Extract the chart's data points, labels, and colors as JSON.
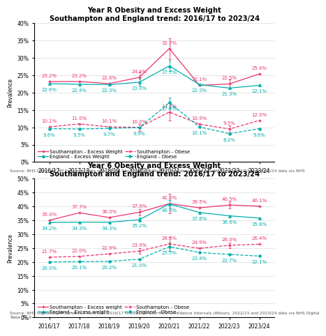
{
  "years": [
    "2016/17",
    "2017/18",
    "2018/19",
    "2019/20",
    "2020/21",
    "2021/22",
    "2022/23",
    "2023/24"
  ],
  "yearR": {
    "title1": "Year R Obesity and Excess Weight",
    "title2": "Southampton and England trend: 2016/17 to 2023/24",
    "soton_excess": [
      23.2,
      23.2,
      22.6,
      24.4,
      32.7,
      22.1,
      22.5,
      25.4
    ],
    "england_excess": [
      22.6,
      22.4,
      22.3,
      23.0,
      27.7,
      22.3,
      21.3,
      22.1
    ],
    "soton_obese": [
      10.1,
      11.0,
      10.1,
      10.0,
      14.4,
      10.9,
      9.5,
      12.0
    ],
    "england_obese": [
      9.6,
      9.5,
      9.7,
      9.9,
      17.1,
      10.1,
      8.2,
      9.6
    ],
    "soton_excess_err": [
      0,
      0,
      0,
      1.5,
      3.0,
      0,
      1.2,
      0
    ],
    "england_excess_err": [
      0,
      0,
      0,
      1.0,
      1.5,
      0,
      0,
      0
    ],
    "soton_obese_err": [
      0,
      0,
      0,
      1.0,
      2.5,
      0,
      1.0,
      0
    ],
    "england_obese_err": [
      0,
      0,
      0,
      0,
      1.5,
      0,
      0,
      0
    ],
    "ylim": [
      0,
      40
    ],
    "yticks": [
      0,
      5,
      10,
      15,
      20,
      25,
      30,
      35,
      40
    ],
    "source": "Source: NHS Digital NCMP Enhanced data sets 2016/17 to 2021/22 with 95% Confidence Intervals (Wilson), 2022/23 and 2023/24 data via NHS"
  },
  "yearY6": {
    "title1": "Year 6 Obesity and Excess Weight",
    "title2": "Southampton and England trend: 2016/17 to 2023/24",
    "soton_excess": [
      35.0,
      37.7,
      36.0,
      37.9,
      41.0,
      39.5,
      40.5,
      40.1
    ],
    "england_excess": [
      34.2,
      34.3,
      34.3,
      35.2,
      40.9,
      37.8,
      36.6,
      35.8
    ],
    "soton_obese": [
      21.7,
      22.0,
      22.9,
      23.9,
      26.5,
      24.9,
      26.0,
      26.4
    ],
    "england_obese": [
      20.0,
      20.1,
      20.2,
      21.0,
      25.5,
      23.4,
      22.7,
      22.1
    ],
    "soton_excess_err": [
      0,
      0,
      0,
      1.2,
      3.5,
      0,
      1.2,
      0
    ],
    "england_excess_err": [
      0,
      0,
      0,
      0.8,
      1.5,
      0,
      0,
      0
    ],
    "soton_obese_err": [
      0,
      0,
      0,
      1.0,
      2.5,
      0,
      1.0,
      0
    ],
    "england_obese_err": [
      0,
      0,
      0,
      0,
      1.5,
      0,
      0,
      0
    ],
    "ylim": [
      0,
      50
    ],
    "yticks": [
      0,
      5,
      10,
      15,
      20,
      25,
      30,
      35,
      40,
      45,
      50
    ],
    "source": "Source: NHS Digital NCMP Enhanced data sets 2016/17 to 2021/22 with 95% Confidence Intervals (Wilson), 2022/23 and 2023/24 data via NHS Digital\nTable 3a_6"
  },
  "soton_color": "#E8336D",
  "england_color": "#00AEAE",
  "label_fontsize": 5.0,
  "tick_fontsize": 5.5,
  "title_fontsize": 7.2,
  "source_fontsize": 4.2,
  "legend_fontsize": 5.0,
  "ylabel": "Prevalence"
}
